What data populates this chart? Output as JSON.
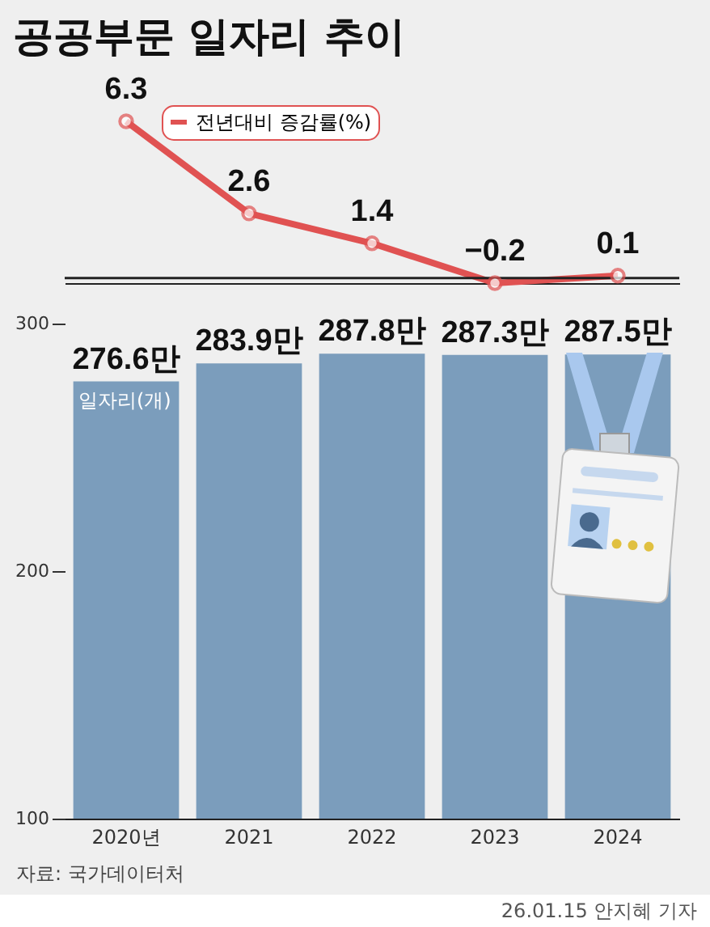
{
  "chart_data": [
    {
      "type": "line",
      "title": "공공부문 일자리 추이",
      "categories": [
        null,
        null,
        null,
        null,
        null
      ],
      "series": [
        {
          "name": "전년대비 증감률(%)",
          "color": "#e05252",
          "values": [
            6.3,
            2.6,
            1.4,
            -0.2,
            0.1
          ],
          "value_labels": [
            "6.3",
            "2.6",
            "1.4",
            "−0.2",
            "0.1"
          ]
        }
      ],
      "marker": "circle",
      "line_style": "solid",
      "legend": "top left",
      "ref_lines": [
        {
          "axis": "y",
          "value": 0,
          "color": "#222222"
        }
      ]
    },
    {
      "type": "bar",
      "ylabel": "일자리(개)",
      "categories": [
        "2020년",
        "2021",
        "2022",
        "2023",
        "2024"
      ],
      "series": [
        {
          "color": "#7b9dbc",
          "values": [
            276.6,
            283.9,
            287.8,
            287.3,
            287.5
          ],
          "value_labels": [
            "276.6만",
            "283.9만",
            "287.8만",
            "287.3만",
            "287.5만"
          ]
        }
      ],
      "ylim": [
        100,
        300
      ],
      "yticks": [
        100,
        200,
        300
      ],
      "annotations": [
        "자료: 국가데이터처",
        "26.01.15 안지혜 기자"
      ]
    }
  ]
}
